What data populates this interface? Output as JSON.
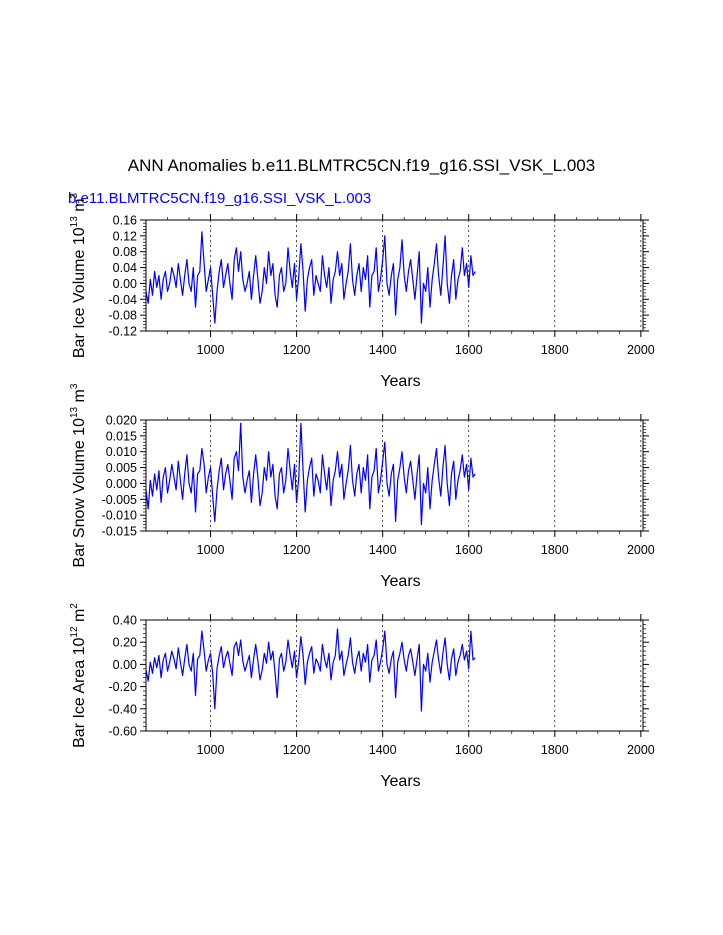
{
  "title": "ANN Anomalies b.e11.BLMTRC5CN.f19_g16.SSI_VSK_L.003",
  "case_name": "b.e11.BLMTRC5CN.f19_g16.SSI_VSK_L.003",
  "colors": {
    "series": "#0000ff",
    "axis": "#000000",
    "grid": "#000000"
  },
  "chart_data": [
    {
      "type": "line",
      "ylabel": "Bar Ice Volume",
      "yunit_base": "10",
      "yunit_exp": "13",
      "yunit_tail": "m",
      "yunit_tail_exp": "3",
      "xlabel": "Years",
      "xlim": [
        850,
        2005
      ],
      "ylim": [
        -0.12,
        0.16
      ],
      "yticks": [
        -0.12,
        -0.08,
        -0.04,
        0.0,
        0.04,
        0.08,
        0.12,
        0.16
      ],
      "ytick_labels": [
        "-0.12",
        "-0.08",
        "-0.04",
        "0.00",
        "0.04",
        "0.08",
        "0.12",
        "0.16"
      ],
      "xticks": [
        1000,
        1200,
        1400,
        1600,
        1800,
        2000
      ],
      "xtick_labels": [
        "1000",
        "1200",
        "1400",
        "1600",
        "1800",
        "2000"
      ],
      "series": [
        {
          "name": "Bar Ice Volume anomaly",
          "x_start": 850,
          "x_step": 5,
          "values": [
            -0.02,
            -0.05,
            0.01,
            -0.03,
            0.03,
            -0.01,
            0.02,
            -0.04,
            0.01,
            0.03,
            -0.02,
            0.0,
            0.04,
            0.02,
            -0.01,
            0.05,
            0.01,
            -0.03,
            0.02,
            0.06,
            0.0,
            -0.02,
            0.04,
            -0.06,
            0.02,
            0.03,
            0.13,
            0.05,
            -0.02,
            0.01,
            0.04,
            -0.03,
            -0.1,
            -0.02,
            0.03,
            0.06,
            -0.01,
            0.02,
            0.05,
            0.0,
            -0.04,
            0.06,
            0.09,
            0.03,
            0.08,
            0.01,
            -0.02,
            0.0,
            0.03,
            -0.04,
            0.02,
            0.07,
            0.01,
            -0.05,
            -0.02,
            0.04,
            0.0,
            0.08,
            0.02,
            0.05,
            -0.03,
            -0.06,
            0.02,
            0.04,
            -0.02,
            0.0,
            0.09,
            0.03,
            -0.01,
            0.05,
            -0.04,
            0.02,
            0.1,
            0.03,
            -0.07,
            0.01,
            0.04,
            0.06,
            -0.03,
            0.02,
            0.0,
            -0.02,
            0.07,
            0.02,
            -0.01,
            0.04,
            -0.05,
            0.01,
            0.03,
            0.08,
            0.02,
            0.05,
            -0.04,
            0.0,
            0.03,
            0.1,
            0.01,
            -0.03,
            0.02,
            0.05,
            -0.02,
            0.04,
            0.01,
            0.07,
            -0.06,
            0.02,
            0.03,
            0.09,
            -0.02,
            0.01,
            0.06,
            0.12,
            0.0,
            -0.03,
            0.02,
            0.05,
            -0.08,
            0.01,
            0.04,
            0.11,
            0.02,
            -0.02,
            0.03,
            0.06,
            0.01,
            -0.04,
            0.02,
            0.08,
            -0.1,
            0.0,
            -0.02,
            0.04,
            -0.06,
            0.01,
            0.05,
            0.1,
            0.02,
            -0.03,
            0.04,
            0.12,
            0.0,
            -0.05,
            0.02,
            0.06,
            -0.04,
            0.01,
            0.03,
            0.09,
            0.02,
            0.05,
            -0.01,
            0.07,
            0.02,
            0.03
          ]
        }
      ]
    },
    {
      "type": "line",
      "ylabel": "Bar Snow Volume",
      "yunit_base": "10",
      "yunit_exp": "13",
      "yunit_tail": "m",
      "yunit_tail_exp": "3",
      "xlabel": "Years",
      "xlim": [
        850,
        2005
      ],
      "ylim": [
        -0.015,
        0.02
      ],
      "yticks": [
        -0.015,
        -0.01,
        -0.005,
        0.0,
        0.005,
        0.01,
        0.015,
        0.02
      ],
      "ytick_labels": [
        "-0.015",
        "-0.010",
        "-0.005",
        "0.000",
        "0.005",
        "0.010",
        "0.015",
        "0.020"
      ],
      "xticks": [
        1000,
        1200,
        1400,
        1600,
        1800,
        2000
      ],
      "xtick_labels": [
        "1000",
        "1200",
        "1400",
        "1600",
        "1800",
        "2000"
      ],
      "series": [
        {
          "name": "Bar Snow Volume anomaly",
          "x_start": 850,
          "x_step": 5,
          "values": [
            -0.002,
            -0.008,
            0.001,
            -0.004,
            0.003,
            -0.002,
            0.004,
            -0.006,
            0.002,
            0.005,
            -0.003,
            0.001,
            0.006,
            0.002,
            -0.002,
            0.007,
            0.001,
            -0.005,
            0.003,
            0.009,
            0.0,
            -0.003,
            0.005,
            -0.009,
            0.003,
            0.004,
            0.011,
            0.006,
            -0.003,
            0.002,
            0.005,
            -0.004,
            -0.012,
            -0.002,
            0.004,
            0.008,
            -0.002,
            0.003,
            0.006,
            0.001,
            -0.005,
            0.008,
            0.01,
            0.004,
            0.019,
            0.002,
            -0.003,
            0.001,
            0.004,
            -0.006,
            0.003,
            0.009,
            0.002,
            -0.007,
            -0.003,
            0.005,
            0.001,
            0.01,
            0.002,
            0.006,
            -0.004,
            -0.008,
            0.003,
            0.005,
            -0.003,
            0.001,
            0.011,
            0.004,
            -0.002,
            0.006,
            -0.006,
            0.002,
            0.019,
            0.004,
            -0.009,
            0.001,
            0.005,
            0.008,
            -0.004,
            0.003,
            0.001,
            -0.003,
            0.009,
            0.003,
            -0.002,
            0.005,
            -0.007,
            0.001,
            0.004,
            0.01,
            0.002,
            0.006,
            -0.005,
            0.0,
            0.004,
            0.012,
            0.001,
            -0.004,
            0.003,
            0.006,
            -0.003,
            0.005,
            0.001,
            0.009,
            -0.008,
            0.002,
            0.004,
            0.011,
            -0.003,
            0.001,
            0.007,
            0.013,
            0.0,
            -0.004,
            0.003,
            0.006,
            -0.012,
            0.001,
            0.005,
            0.01,
            0.002,
            -0.003,
            0.004,
            0.007,
            0.001,
            -0.005,
            0.003,
            0.009,
            -0.013,
            0.0,
            -0.003,
            0.005,
            -0.008,
            0.001,
            0.006,
            0.011,
            0.002,
            -0.004,
            0.005,
            0.012,
            0.0,
            -0.007,
            0.003,
            0.007,
            -0.005,
            0.001,
            0.004,
            0.009,
            0.002,
            0.006,
            -0.002,
            0.008,
            0.002,
            0.003
          ]
        }
      ]
    },
    {
      "type": "line",
      "ylabel": "Bar Ice Area",
      "yunit_base": "10",
      "yunit_exp": "12",
      "yunit_tail": "m",
      "yunit_tail_exp": "2",
      "xlabel": "Years",
      "xlim": [
        850,
        2005
      ],
      "ylim": [
        -0.6,
        0.4
      ],
      "yticks": [
        -0.6,
        -0.4,
        -0.2,
        0.0,
        0.2,
        0.4
      ],
      "ytick_labels": [
        "-0.60",
        "-0.40",
        "-0.20",
        "0.00",
        "0.20",
        "0.40"
      ],
      "xticks": [
        1000,
        1200,
        1400,
        1600,
        1800,
        2000
      ],
      "xtick_labels": [
        "1000",
        "1200",
        "1400",
        "1600",
        "1800",
        "2000"
      ],
      "series": [
        {
          "name": "Bar Ice Area anomaly",
          "x_start": 850,
          "x_step": 5,
          "values": [
            -0.05,
            -0.15,
            0.02,
            -0.08,
            0.06,
            -0.03,
            0.08,
            -0.12,
            0.04,
            0.1,
            -0.06,
            0.02,
            0.12,
            0.05,
            -0.04,
            0.15,
            0.02,
            -0.1,
            0.05,
            0.18,
            0.0,
            -0.06,
            0.1,
            -0.28,
            0.05,
            0.08,
            0.3,
            0.12,
            -0.06,
            0.04,
            0.1,
            -0.08,
            -0.4,
            -0.04,
            0.08,
            0.16,
            -0.03,
            0.06,
            0.12,
            0.01,
            -0.1,
            0.16,
            0.2,
            0.08,
            0.22,
            0.03,
            -0.06,
            0.01,
            0.08,
            -0.12,
            0.05,
            0.18,
            0.03,
            -0.14,
            -0.05,
            0.1,
            0.01,
            0.2,
            0.04,
            0.12,
            -0.08,
            -0.3,
            0.05,
            0.1,
            -0.06,
            0.02,
            0.22,
            0.08,
            -0.03,
            0.12,
            -0.12,
            0.04,
            0.25,
            0.08,
            -0.18,
            0.02,
            0.1,
            0.16,
            -0.08,
            0.05,
            0.01,
            -0.06,
            0.18,
            0.05,
            -0.03,
            0.1,
            -0.14,
            0.02,
            0.08,
            0.32,
            0.04,
            0.12,
            -0.1,
            0.0,
            0.08,
            0.24,
            0.02,
            -0.08,
            0.05,
            0.12,
            -0.06,
            0.1,
            0.02,
            0.18,
            -0.16,
            0.04,
            0.08,
            0.22,
            -0.06,
            0.02,
            0.14,
            0.3,
            0.0,
            -0.08,
            0.05,
            0.12,
            -0.3,
            0.02,
            0.1,
            0.2,
            0.04,
            -0.06,
            0.08,
            0.14,
            0.02,
            -0.1,
            0.05,
            0.18,
            -0.42,
            0.0,
            -0.06,
            0.1,
            -0.16,
            0.02,
            0.12,
            0.22,
            0.04,
            -0.08,
            0.1,
            0.24,
            0.0,
            -0.14,
            0.05,
            0.14,
            -0.1,
            0.02,
            0.08,
            0.18,
            0.04,
            0.12,
            -0.04,
            0.3,
            0.04,
            0.06
          ]
        }
      ]
    }
  ]
}
